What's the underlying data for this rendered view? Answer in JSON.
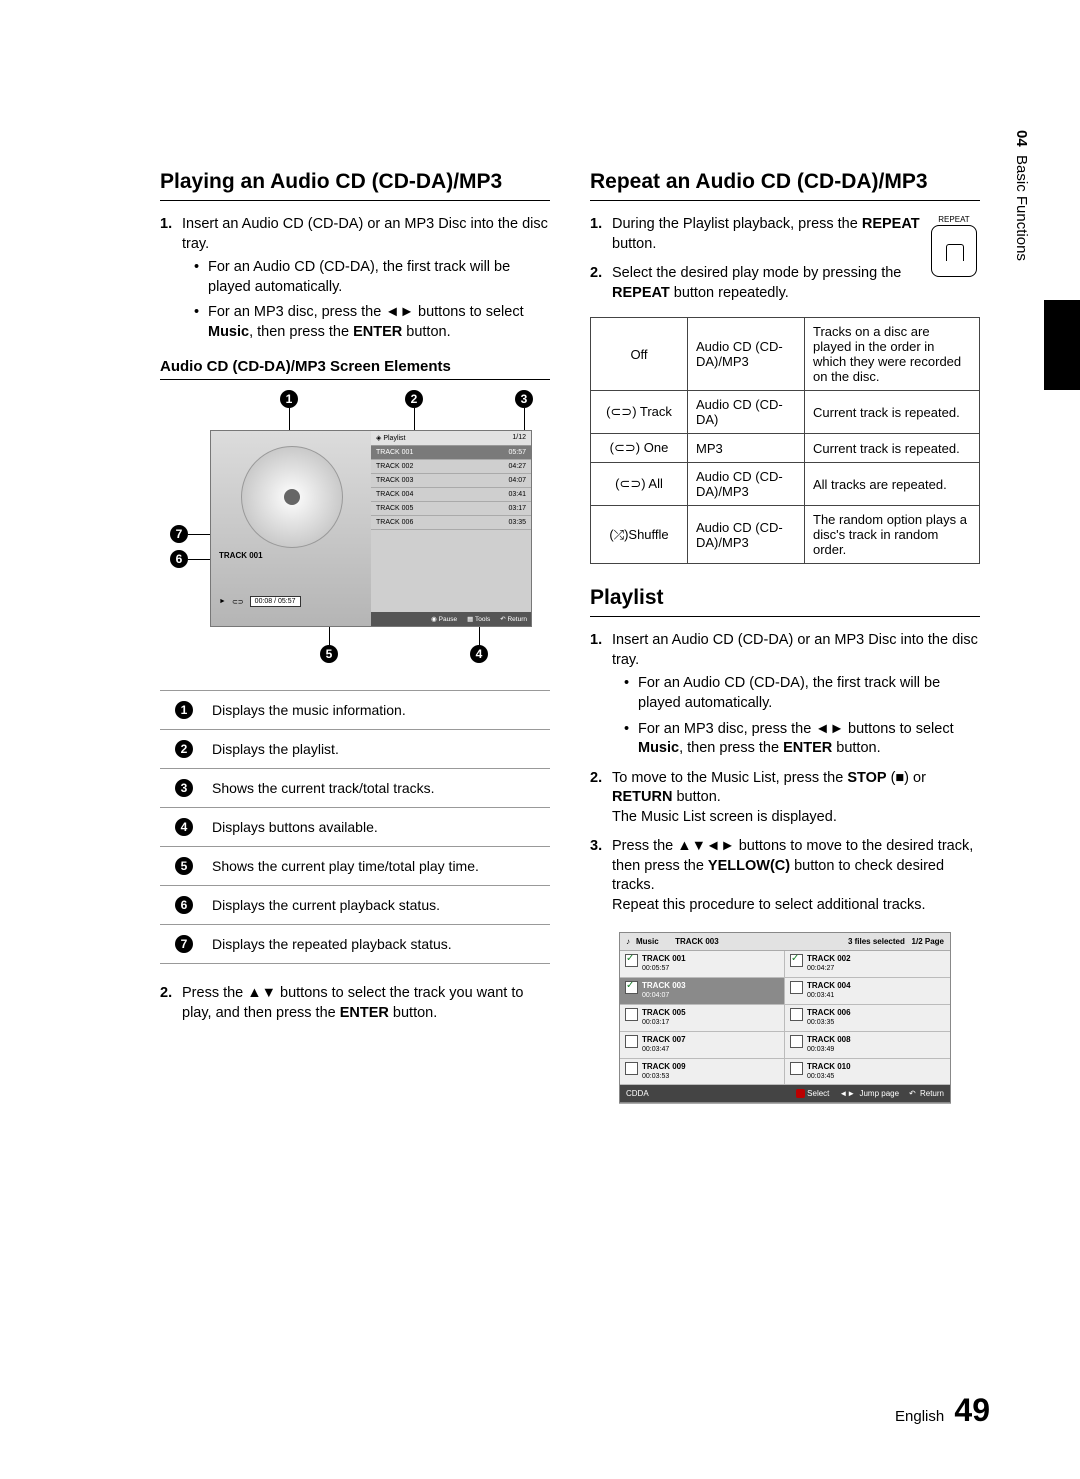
{
  "sideTab": {
    "num": "04",
    "label": "Basic Functions"
  },
  "left": {
    "h1": "Playing an Audio CD (CD-DA)/MP3",
    "s1": {
      "num": "1.",
      "text": "Insert an Audio CD (CD-DA) or an MP3 Disc into the disc tray.",
      "b1": "For an Audio CD (CD-DA), the first track will be played automatically.",
      "b2a": "For an MP3 disc, press the ",
      "b2arrows": "◄►",
      "b2b": " buttons to select ",
      "b2music": "Music",
      "b2c": ", then press the ",
      "b2enter": "ENTER",
      "b2d": " button."
    },
    "sub": "Audio CD (CD-DA)/MP3 Screen Elements",
    "dia": {
      "playlistLabel": "Playlist",
      "count": "1/12",
      "trackLabel": "TRACK 001",
      "time": "00:08 / 05:57",
      "play": "►",
      "repeat": "⊂⊃",
      "tracks": [
        {
          "n": "TRACK 001",
          "t": "05:57"
        },
        {
          "n": "TRACK 002",
          "t": "04:27"
        },
        {
          "n": "TRACK 003",
          "t": "04:07"
        },
        {
          "n": "TRACK 004",
          "t": "03:41"
        },
        {
          "n": "TRACK 005",
          "t": "03:17"
        },
        {
          "n": "TRACK 006",
          "t": "03:35"
        }
      ],
      "foot": {
        "pause": "Pause",
        "tools": "Tools",
        "ret": "Return"
      }
    },
    "desc": [
      "Displays the music information.",
      "Displays the playlist.",
      "Shows the current track/total tracks.",
      "Displays buttons available.",
      "Shows the current play time/total play time.",
      "Displays the current playback status.",
      "Displays the repeated playback status."
    ],
    "s2": {
      "num": "2.",
      "a": "Press the ",
      "arrows": "▲▼",
      "b": " buttons to select the track you want to play, and then press the ",
      "enter": "ENTER",
      "c": " button."
    }
  },
  "right": {
    "h1": "Repeat an Audio CD (CD-DA)/MP3",
    "repeatBtn": "REPEAT",
    "s1": {
      "num": "1.",
      "a": "During the Playlist playback, press the ",
      "b": "REPEAT",
      "c": " button."
    },
    "s2": {
      "num": "2.",
      "a": "Select the desired play mode by pressing the ",
      "b": "REPEAT",
      "c": " button repeatedly."
    },
    "modes": [
      {
        "m": "Off",
        "d": "Audio CD (CD-DA)/MP3",
        "t": "Tracks on a disc are played in the order in which they were recorded on the disc."
      },
      {
        "m": "(⊂⊃) Track",
        "d": "Audio CD (CD-DA)",
        "t": "Current track is repeated."
      },
      {
        "m": "(⊂⊃) One",
        "d": "MP3",
        "t": "Current track is repeated."
      },
      {
        "m": "(⊂⊃) All",
        "d": "Audio CD (CD-DA)/MP3",
        "t": "All tracks are repeated."
      },
      {
        "m": "(⤮)Shuffle",
        "d": "Audio CD (CD-DA)/MP3",
        "t": "The random option plays a disc's track in random order."
      }
    ],
    "h2": "Playlist",
    "p1": {
      "num": "1.",
      "text": "Insert an Audio CD (CD-DA) or an MP3 Disc into the disc tray.",
      "b1": "For an Audio CD (CD-DA), the first track will be played automatically.",
      "b2a": "For an MP3 disc, press the ",
      "b2arrows": "◄►",
      "b2b": " buttons to select ",
      "b2music": "Music",
      "b2c": ", then press the ",
      "b2enter": "ENTER",
      "b2d": " button."
    },
    "p2": {
      "num": "2.",
      "a": "To move to the Music List, press the ",
      "stop": "STOP",
      "stopSym": " (■)",
      "b": " or ",
      "ret": "RETURN",
      "c": " button.",
      "d": "The Music List screen is displayed."
    },
    "p3": {
      "num": "3.",
      "a": "Press the ",
      "arrows": "▲▼◄►",
      "b": " buttons to move to the desired track, then press the ",
      "yel": "YELLOW(C)",
      "c": " button to check desired tracks.",
      "d": "Repeat this procedure to select additional tracks."
    },
    "mlist": {
      "title": "Music",
      "cur": "TRACK 003",
      "sel": "3 files selected",
      "page": "1/2 Page",
      "cells": [
        {
          "n": "TRACK 001",
          "t": "00:05:57",
          "chk": true
        },
        {
          "n": "TRACK 002",
          "t": "00:04:27",
          "chk": true
        },
        {
          "n": "TRACK 003",
          "t": "00:04:07",
          "chk": true,
          "sel": true
        },
        {
          "n": "TRACK 004",
          "t": "00:03:41"
        },
        {
          "n": "TRACK 005",
          "t": "00:03:17"
        },
        {
          "n": "TRACK 006",
          "t": "00:03:35"
        },
        {
          "n": "TRACK 007",
          "t": "00:03:47"
        },
        {
          "n": "TRACK 008",
          "t": "00:03:49"
        },
        {
          "n": "TRACK 009",
          "t": "00:03:53"
        },
        {
          "n": "TRACK 010",
          "t": "00:03:45"
        }
      ],
      "disc": "CDDA",
      "foot": {
        "sel": "Select",
        "jump": "Jump page",
        "ret": "Return"
      }
    }
  },
  "footer": {
    "lang": "English",
    "page": "49"
  }
}
